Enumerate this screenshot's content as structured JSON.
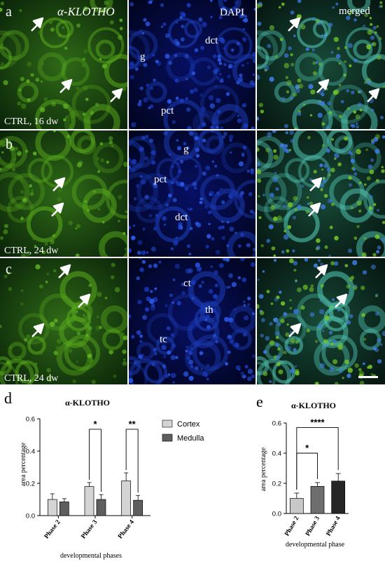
{
  "panels": {
    "letters": [
      "a",
      "b",
      "c"
    ],
    "column_titles": [
      "α-KLOTHO",
      "DAPI",
      "merged"
    ],
    "row_captions": [
      "CTRL, 16 dw",
      "CTRL, 24 dw",
      "CTRL, 24 dw"
    ],
    "dapi_labels": [
      [
        "dct",
        "g",
        "pct"
      ],
      [
        "g",
        "pct",
        "dct"
      ],
      [
        "ct",
        "th",
        "tc"
      ]
    ],
    "colors": {
      "green_dark": "#082108",
      "green_bright": "#59a91c",
      "blue_dark": "#02062c",
      "blue_bright": "#2e5df0",
      "cyan": "#52c7b5",
      "arrow": "#ffffff"
    }
  },
  "chart_d": {
    "letter": "d",
    "chart_data": {
      "type": "bar",
      "title": "α-KLOTHO",
      "categories": [
        "Phase 2",
        "Phase 3",
        "Phase 4"
      ],
      "series": [
        {
          "name": "Cortex",
          "values": [
            0.1,
            0.18,
            0.215
          ],
          "errors": [
            0.035,
            0.025,
            0.05
          ],
          "color": "#d4d4d4"
        },
        {
          "name": "Medulla",
          "values": [
            0.085,
            0.1,
            0.095
          ],
          "errors": [
            0.02,
            0.03,
            0.03
          ],
          "color": "#5e5e5e"
        }
      ],
      "xlabel": "developmental phases",
      "ylabel": "area percentage",
      "ylim": [
        0,
        0.6
      ],
      "yticks": [
        "0.0",
        "0.2",
        "0.4",
        "0.6"
      ],
      "significance": [
        {
          "category": "Phase 3",
          "label": "*"
        },
        {
          "category": "Phase 4",
          "label": "**"
        }
      ],
      "legend_position": "right"
    }
  },
  "chart_e": {
    "letter": "e",
    "chart_data": {
      "type": "bar",
      "title": "α-KLOTHO",
      "categories": [
        "Phase 2",
        "Phase 3",
        "Phase 4"
      ],
      "values": [
        0.1,
        0.18,
        0.215
      ],
      "errors": [
        0.035,
        0.025,
        0.05
      ],
      "colors": [
        "#c8c8c8",
        "#6e6e6e",
        "#262626"
      ],
      "xlabel": "developmental phase",
      "ylabel": "area percentage",
      "ylim": [
        0,
        0.6
      ],
      "yticks": [
        "0.0",
        "0.2",
        "0.4",
        "0.6"
      ],
      "significance": [
        {
          "from": "Phase 2",
          "to": "Phase 3",
          "label": "*"
        },
        {
          "from": "Phase 2",
          "to": "Phase 4",
          "label": "****"
        }
      ]
    }
  }
}
